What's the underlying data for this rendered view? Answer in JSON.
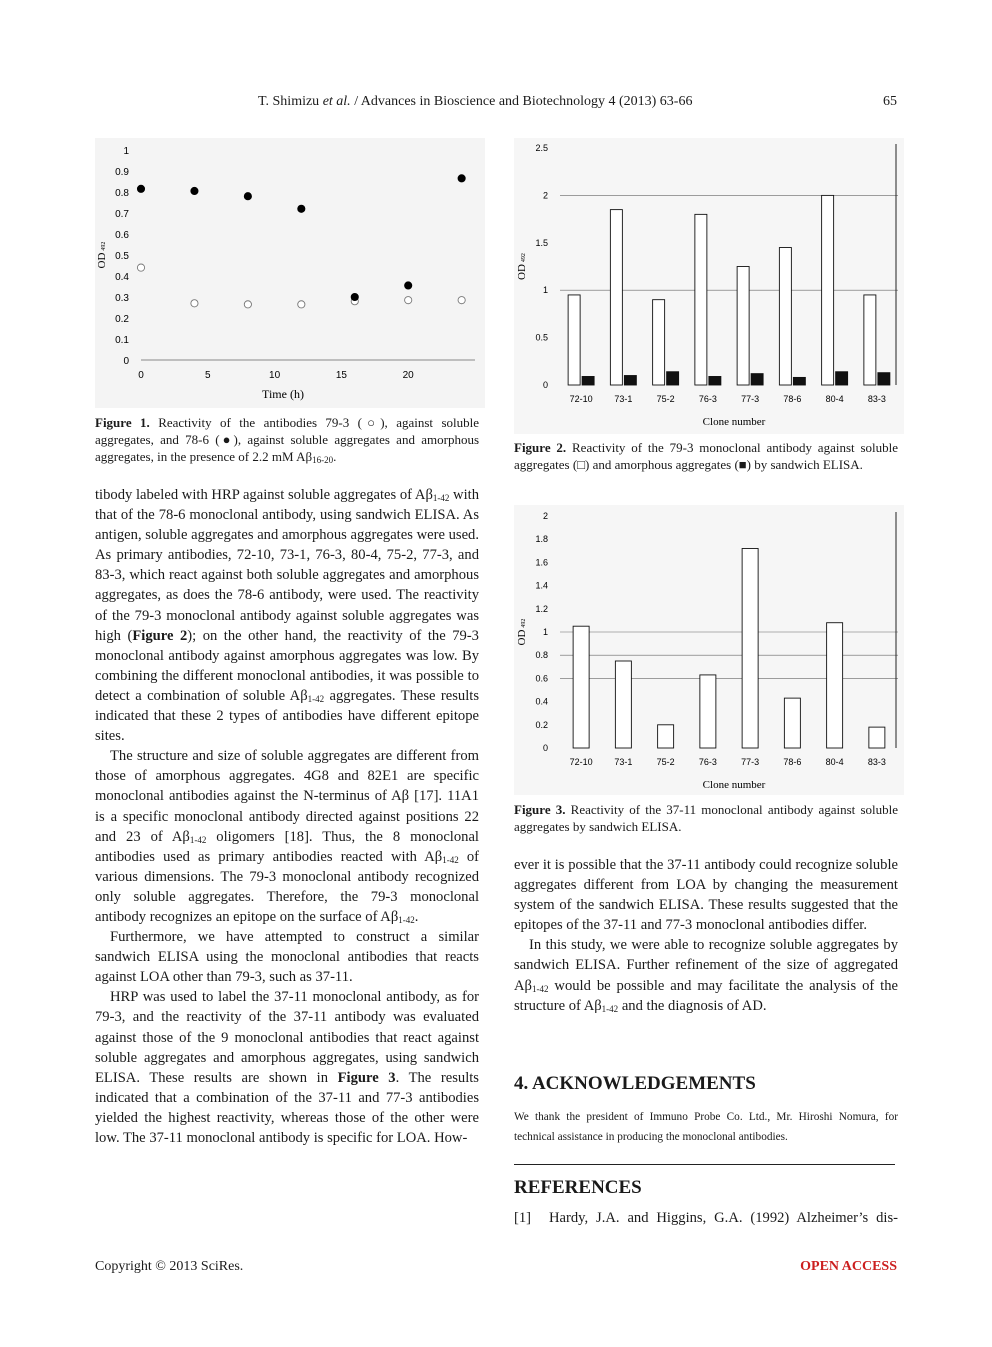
{
  "header": {
    "authors": "T. Shimizu",
    "etal": "et al.",
    "journal": "/ Advances in Bioscience and Biotechnology 4 (2013) 63-66",
    "page_number": "65"
  },
  "figure1": {
    "caption_label": "Figure 1.",
    "caption_text": "Reactivity of the antibodies 79-3 (○), against soluble aggregates, and 78-6 (●), against soluble aggregates and amorphous aggregates, in the presence of 2.2 mM Aβ",
    "caption_sub": "16-20",
    "caption_end": "."
  },
  "figure2": {
    "caption_label": "Figure 2.",
    "caption_text": "Reactivity of the 79-3 monoclonal antibody against soluble aggregates (□) and amorphous aggregates (■) by sandwich ELISA."
  },
  "figure3": {
    "caption_label": "Figure 3.",
    "caption_text": "Reactivity of the 37-11 monoclonal antibody against soluble aggregates by sandwich ELISA."
  },
  "chart_data": [
    {
      "type": "scatter",
      "xlabel": "Time (h)",
      "ylabel": "OD",
      "ylabel_sub": "492",
      "xlim": [
        0,
        25
      ],
      "ylim": [
        0,
        1
      ],
      "xticks": [
        "0",
        "5",
        "10",
        "15",
        "20"
      ],
      "yticks": [
        "0",
        "0.1",
        "0.2",
        "0.3",
        "0.4",
        "0.5",
        "0.6",
        "0.7",
        "0.8",
        "0.9",
        "1"
      ],
      "series": [
        {
          "name": "79-3",
          "marker": "open-circle",
          "x": [
            0,
            4,
            8,
            12,
            16,
            20,
            24
          ],
          "y": [
            0.44,
            0.27,
            0.265,
            0.265,
            0.28,
            0.285,
            0.285
          ]
        },
        {
          "name": "78-6",
          "marker": "filled-circle",
          "x": [
            0,
            4,
            8,
            12,
            16,
            20,
            24
          ],
          "y": [
            0.815,
            0.805,
            0.78,
            0.72,
            0.3,
            0.355,
            0.865
          ]
        }
      ]
    },
    {
      "type": "bar",
      "xlabel": "Clone number",
      "ylabel": "OD",
      "ylabel_sub": "492",
      "ylim": [
        0,
        2.5
      ],
      "yticks": [
        "0",
        "0.5",
        "1",
        "1.5",
        "2",
        "2.5"
      ],
      "categories": [
        "72-10",
        "73-1",
        "75-2",
        "76-3",
        "77-3",
        "78-6",
        "80-4",
        "83-3"
      ],
      "series": [
        {
          "name": "soluble aggregates",
          "values": [
            0.95,
            1.85,
            0.9,
            1.8,
            1.25,
            1.45,
            2.0,
            0.95
          ]
        },
        {
          "name": "amorphous aggregates",
          "values": [
            0.09,
            0.1,
            0.14,
            0.09,
            0.12,
            0.08,
            0.14,
            0.13
          ]
        }
      ]
    },
    {
      "type": "bar",
      "xlabel": "Clone number",
      "ylabel": "OD",
      "ylabel_sub": "492",
      "ylim": [
        0,
        2
      ],
      "yticks": [
        "0",
        "0.2",
        "0.4",
        "0.6",
        "0.8",
        "1",
        "1.2",
        "1.4",
        "1.6",
        "1.8",
        "2"
      ],
      "categories": [
        "72-10",
        "73-1",
        "75-2",
        "76-3",
        "77-3",
        "78-6",
        "80-4",
        "83-3"
      ],
      "series": [
        {
          "name": "soluble aggregates",
          "values": [
            1.05,
            0.75,
            0.2,
            0.63,
            1.72,
            0.43,
            1.08,
            0.18
          ]
        }
      ]
    }
  ],
  "left_column": {
    "p1_a": "tibody labeled with HRP against soluble aggregates of Aβ",
    "p1_sub1": "1-42",
    "p1_b": " with that of the 78-6 monoclonal antibody, using sandwich ELISA. As antigen, soluble aggregates and amorphous aggregates were used. As primary antibodies, 72-10, 73-1, 76-3, 80-4, 75-2, 77-3, and 83-3, which react against both soluble aggregates and amorphous aggregates, as does the 78-6 antibody, were used. The reactivity of the 79-3 monoclonal antibody against soluble aggregates was high (",
    "p1_figref": "Figure 2",
    "p1_c": "); on the other hand, the reactivity of the 79-3 monoclonal antibody against amorphous aggregates was low. By combining the different monoclonal antibodies, it was possible to detect a combination of soluble Aβ",
    "p1_sub2": "1-42",
    "p1_d": " aggregates. These results indicated that these 2 types of antibodies have different epitope sites.",
    "p2_a": "The structure and size of soluble aggregates are different from those of amorphous aggregates. 4G8 and 82E1 are specific monoclonal antibodies against the N-terminus of Aβ [17]. 11A1 is a specific monoclonal antibody directed against positions 22 and 23 of Aβ",
    "p2_sub1": "1-42",
    "p2_b": " oligomers [18]. Thus, the 8 monoclonal antibodies used as primary antibodies reacted with Aβ",
    "p2_sub2": "1-42",
    "p2_c": " of various dimensions. The 79-3 monoclonal antibody recognized only soluble aggregates. Therefore, the 79-3 monoclonal antibody recognizes an epitope on the surface of Aβ",
    "p2_sub3": "1-42",
    "p2_d": ".",
    "p3": "Furthermore, we have attempted to construct a similar sandwich ELISA using the monoclonal antibodies that reacts against LOA other than 79-3, such as 37-11.",
    "p4_a": "HRP was used to label the 37-11 monoclonal antibody, as for 79-3, and the reactivity of the 37-11 antibody was evaluated against those of the 9 monoclonal antibodies that react against soluble aggregates and amorphous aggregates, using sandwich ELISA. These results are shown in ",
    "p4_figref": "Figure 3",
    "p4_b": ". The results indicated that a combination of the 37-11 and 77-3 antibodies yielded the highest reactivity, whereas those of the other were low. The 37-11 monoclonal antibody is specific for LOA. How-"
  },
  "right_column": {
    "p1": "ever it is possible that the 37-11 antibody could recognize soluble aggregates different from LOA by changing the measurement system of the sandwich ELISA. These results suggested that the epitopes of the 37-11 and 77-3 monoclonal antibodies differ.",
    "p2_a": "In this study, we were able to recognize soluble aggregates by sandwich ELISA. Further refinement of the size of aggregated Aβ",
    "p2_sub1": "1-42",
    "p2_b": " would be possible and may facilitate the analysis of the structure of Aβ",
    "p2_sub2": "1-42",
    "p2_c": " and the diagnosis of AD."
  },
  "acknowledgements": {
    "title": "4. ACKNOWLEDGEMENTS",
    "text": "We thank the president of Immuno Probe Co. Ltd., Mr. Hiroshi Nomura, for technical assistance in producing the monoclonal antibodies."
  },
  "references": {
    "title": "REFERENCES",
    "items": [
      {
        "num": "[1]",
        "text": "Hardy, J.A. and Higgins, G.A. (1992) Alzheimer’s dis-"
      }
    ]
  },
  "footer": {
    "copyright": "Copyright © 2013 SciRes.",
    "open_access": "OPEN ACCESS"
  }
}
